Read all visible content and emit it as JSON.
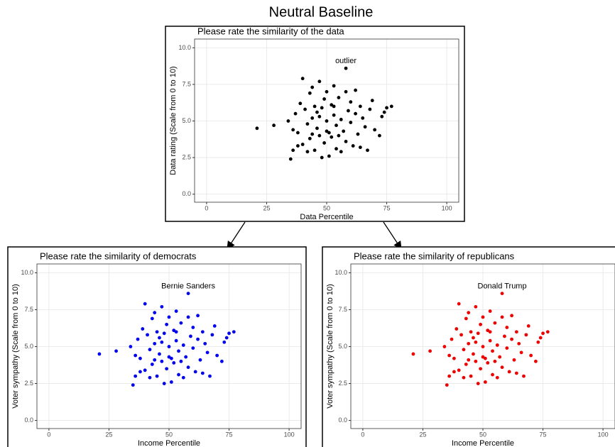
{
  "title": "Neutral Baseline",
  "chart_data": [
    {
      "type": "scatter",
      "title": "Please rate the similarity of the data",
      "xlabel": "Data Percentile",
      "ylabel": "Data rating (Scale from 0 to 10)",
      "annotation": "outlier",
      "color": "#000000",
      "x": [
        58,
        21,
        28,
        35,
        36,
        37,
        38,
        39,
        40,
        40,
        41,
        42,
        42,
        43,
        43,
        44,
        44,
        45,
        45,
        46,
        46,
        47,
        47,
        48,
        48,
        49,
        49,
        50,
        50,
        51,
        51,
        52,
        52,
        53,
        53,
        54,
        54,
        55,
        56,
        56,
        57,
        58,
        58,
        59,
        60,
        60,
        61,
        62,
        62,
        63,
        64,
        64,
        65,
        66,
        67,
        68,
        69,
        70,
        72,
        73,
        74,
        75,
        77,
        34,
        36,
        38,
        55,
        50,
        47,
        44,
        53
      ],
      "y": [
        8.6,
        4.5,
        4.7,
        2.4,
        3.0,
        5.5,
        4.2,
        6.2,
        7.9,
        3.4,
        5.8,
        4.8,
        2.9,
        6.9,
        3.8,
        5.2,
        7.3,
        6.0,
        3.0,
        4.5,
        5.6,
        7.7,
        4.0,
        2.5,
        5.9,
        6.5,
        3.5,
        5.0,
        7.0,
        4.2,
        2.6,
        6.1,
        3.9,
        5.4,
        7.4,
        4.7,
        3.1,
        6.6,
        5.1,
        2.9,
        4.3,
        7.0,
        3.6,
        5.7,
        4.9,
        6.3,
        3.3,
        5.5,
        7.1,
        4.1,
        6.0,
        3.2,
        5.2,
        4.6,
        3.0,
        5.8,
        6.4,
        4.4,
        4.0,
        5.3,
        5.6,
        5.9,
        6.0,
        5.0,
        4.4,
        3.3,
        4.0,
        4.3,
        5.3,
        4.1,
        6.0
      ],
      "xlim": [
        -5,
        105
      ],
      "ylim": [
        -0.55,
        10.6
      ],
      "xticks": [
        0,
        25,
        50,
        75,
        100
      ],
      "yticks": [
        {
          "value": 0,
          "label": "0.0"
        },
        2.5,
        {
          "value": 5,
          "label": "5.0"
        },
        7.5,
        {
          "value": 10,
          "label": "10.0"
        }
      ],
      "grid": true
    },
    {
      "type": "scatter",
      "title": "Please rate the similarity of democrats",
      "xlabel": "Income Percentile",
      "ylabel": "Voter sympathy (Scale from 0 to 10)",
      "annotation": "Bernie Sanders",
      "color": "#0000ee",
      "x": [
        58,
        21,
        28,
        35,
        36,
        37,
        38,
        39,
        40,
        40,
        41,
        42,
        42,
        43,
        43,
        44,
        44,
        45,
        45,
        46,
        46,
        47,
        47,
        48,
        48,
        49,
        49,
        50,
        50,
        51,
        51,
        52,
        52,
        53,
        53,
        54,
        54,
        55,
        56,
        56,
        57,
        58,
        58,
        59,
        60,
        60,
        61,
        62,
        62,
        63,
        64,
        64,
        65,
        66,
        67,
        68,
        69,
        70,
        72,
        73,
        74,
        75,
        77,
        34,
        36,
        38,
        55,
        50,
        47,
        44,
        53
      ],
      "y": [
        8.6,
        4.5,
        4.7,
        2.4,
        3.0,
        5.5,
        4.2,
        6.2,
        7.9,
        3.4,
        5.8,
        4.8,
        2.9,
        6.9,
        3.8,
        5.2,
        7.3,
        6.0,
        3.0,
        4.5,
        5.6,
        7.7,
        4.0,
        2.5,
        5.9,
        6.5,
        3.5,
        5.0,
        7.0,
        4.2,
        2.6,
        6.1,
        3.9,
        5.4,
        7.4,
        4.7,
        3.1,
        6.6,
        5.1,
        2.9,
        4.3,
        7.0,
        3.6,
        5.7,
        4.9,
        6.3,
        3.3,
        5.5,
        7.1,
        4.1,
        6.0,
        3.2,
        5.2,
        4.6,
        3.0,
        5.8,
        6.4,
        4.4,
        4.0,
        5.3,
        5.6,
        5.9,
        6.0,
        5.0,
        4.4,
        3.3,
        4.0,
        4.3,
        5.3,
        4.1,
        6.0
      ],
      "xlim": [
        -5,
        105
      ],
      "ylim": [
        -0.55,
        10.6
      ],
      "xticks": [
        0,
        25,
        50,
        75,
        100
      ],
      "yticks": [
        {
          "value": 0,
          "label": "0.0"
        },
        2.5,
        {
          "value": 5,
          "label": "5.0"
        },
        7.5,
        {
          "value": 10,
          "label": "10.0"
        }
      ],
      "grid": true
    },
    {
      "type": "scatter",
      "title": "Please rate the similarity of republicans",
      "xlabel": "Income Percentile",
      "ylabel": "Voter sympathy (Scale from 0 to 10)",
      "annotation": "Donald Trump",
      "color": "#ee0000",
      "x": [
        58,
        21,
        28,
        35,
        36,
        37,
        38,
        39,
        40,
        40,
        41,
        42,
        42,
        43,
        43,
        44,
        44,
        45,
        45,
        46,
        46,
        47,
        47,
        48,
        48,
        49,
        49,
        50,
        50,
        51,
        51,
        52,
        52,
        53,
        53,
        54,
        54,
        55,
        56,
        56,
        57,
        58,
        58,
        59,
        60,
        60,
        61,
        62,
        62,
        63,
        64,
        64,
        65,
        66,
        67,
        68,
        69,
        70,
        72,
        73,
        74,
        75,
        77,
        34,
        36,
        38,
        55,
        50,
        47,
        44,
        53
      ],
      "y": [
        8.6,
        4.5,
        4.7,
        2.4,
        3.0,
        5.5,
        4.2,
        6.2,
        7.9,
        3.4,
        5.8,
        4.8,
        2.9,
        6.9,
        3.8,
        5.2,
        7.3,
        6.0,
        3.0,
        4.5,
        5.6,
        7.7,
        4.0,
        2.5,
        5.9,
        6.5,
        3.5,
        5.0,
        7.0,
        4.2,
        2.6,
        6.1,
        3.9,
        5.4,
        7.4,
        4.7,
        3.1,
        6.6,
        5.1,
        2.9,
        4.3,
        7.0,
        3.6,
        5.7,
        4.9,
        6.3,
        3.3,
        5.5,
        7.1,
        4.1,
        6.0,
        3.2,
        5.2,
        4.6,
        3.0,
        5.8,
        6.4,
        4.4,
        4.0,
        5.3,
        5.6,
        5.9,
        6.0,
        5.0,
        4.4,
        3.3,
        4.0,
        4.3,
        5.3,
        4.1,
        6.0
      ],
      "xlim": [
        -5,
        105
      ],
      "ylim": [
        -0.55,
        10.6
      ],
      "xticks": [
        0,
        25,
        50,
        75,
        100
      ],
      "yticks": [
        {
          "value": 0,
          "label": "0.0"
        },
        2.5,
        {
          "value": 5,
          "label": "5.0"
        },
        7.5,
        {
          "value": 10,
          "label": "10.0"
        }
      ],
      "grid": true
    }
  ]
}
